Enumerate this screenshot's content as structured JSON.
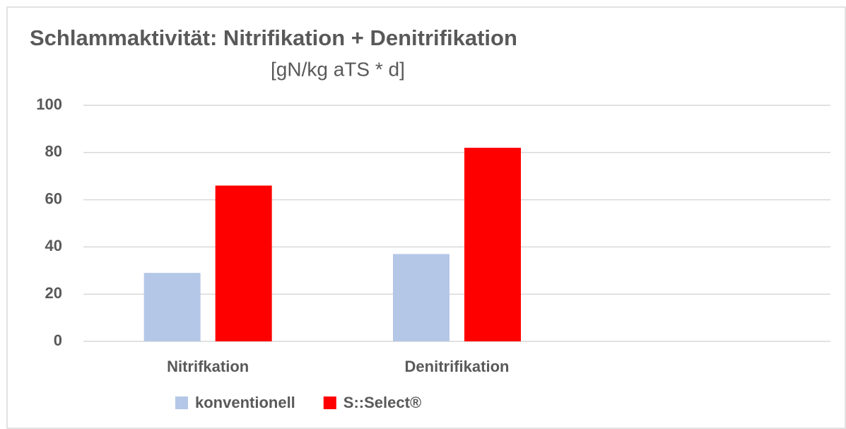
{
  "chart_data": {
    "type": "bar",
    "title": "Schlammaktivität: Nitrifikation + Denitrifikation",
    "subtitle": "[gN/kg aTS * d]",
    "categories": [
      "Nitrifkation",
      "Denitrifikation",
      null
    ],
    "series": [
      {
        "name": "konventionell",
        "color": "#b4c7e7",
        "values": [
          29,
          37,
          null
        ]
      },
      {
        "name": "S::Select®",
        "color": "#ff0000",
        "values": [
          66,
          82,
          null
        ]
      }
    ],
    "ylim": [
      0,
      100
    ],
    "yticks": [
      0,
      20,
      40,
      60,
      80,
      100
    ],
    "grid": true,
    "legend": "bottom"
  }
}
